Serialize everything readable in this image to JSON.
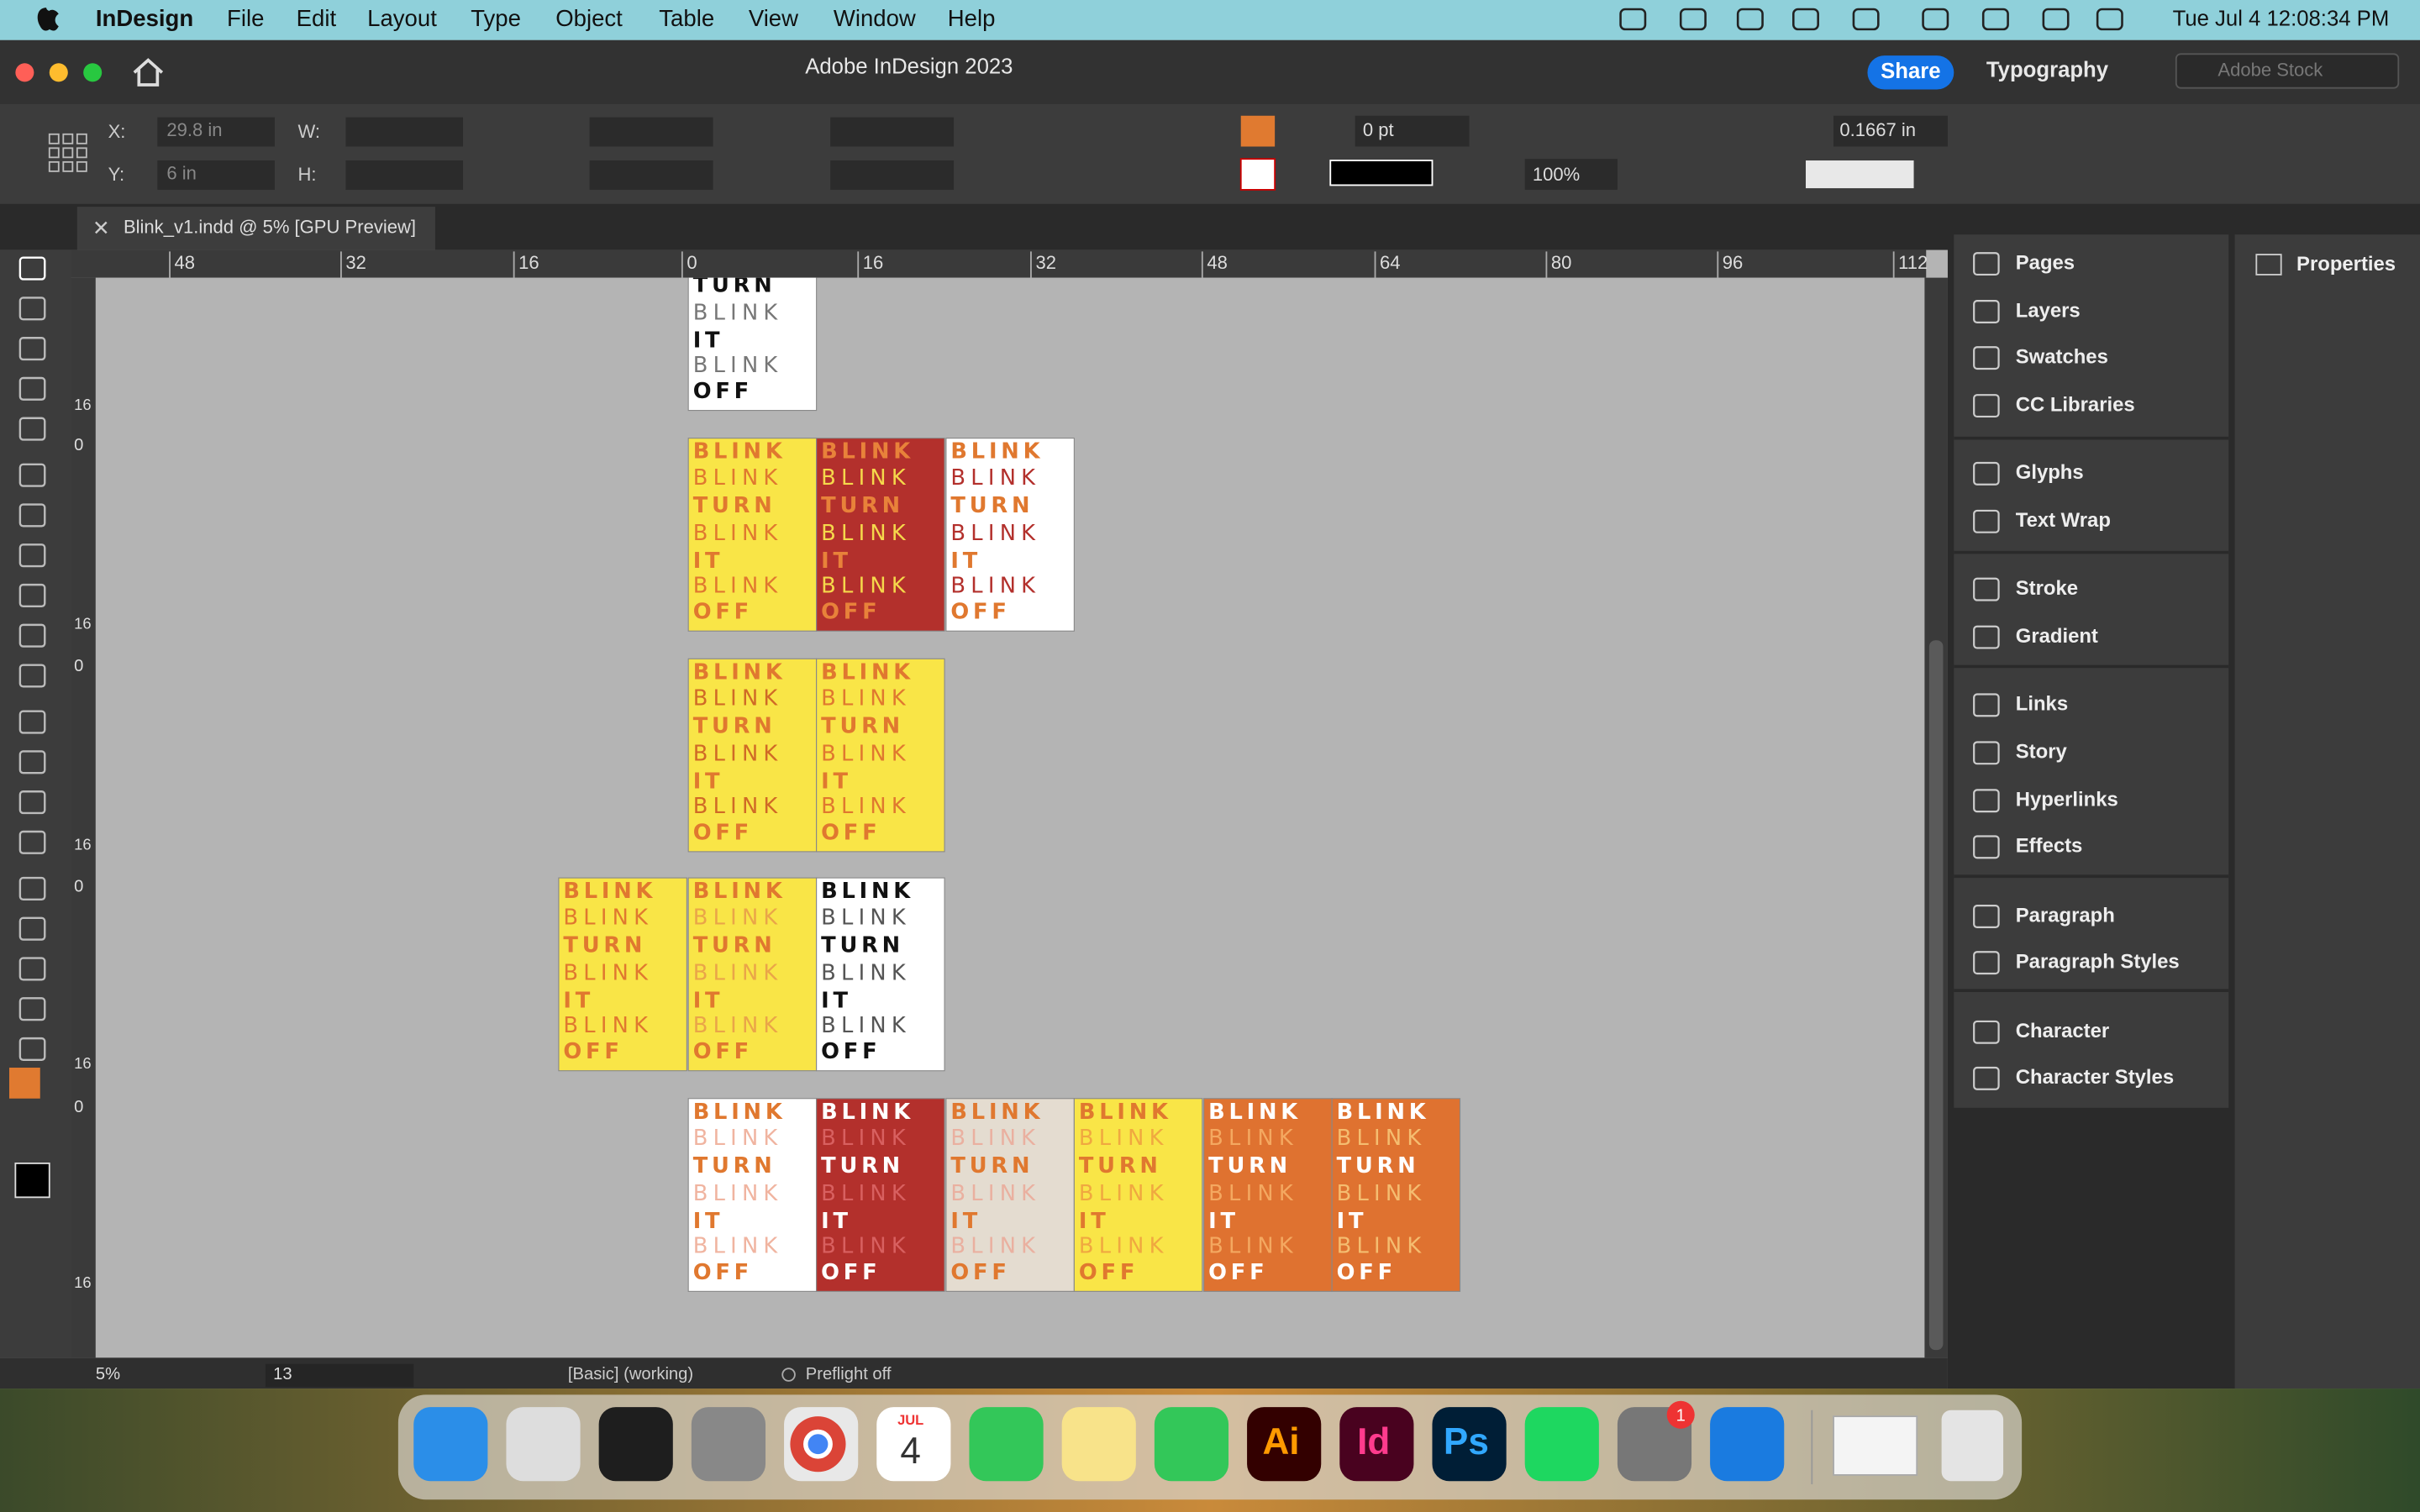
{
  "menubar": {
    "app": "InDesign",
    "menus": [
      "File",
      "Edit",
      "Layout",
      "Type",
      "Object",
      "Table",
      "View",
      "Window",
      "Help"
    ],
    "datetime": "Tue Jul 4  12:08:34 PM"
  },
  "titlebar": {
    "title": "Adobe InDesign 2023",
    "share": "Share",
    "workspace": "Typography",
    "search": "Adobe Stock"
  },
  "control": {
    "x_label": "X:",
    "x": "29.8 in",
    "y_label": "Y:",
    "y": "6 in",
    "w_label": "W:",
    "h_label": "H:",
    "stroke": "0 pt",
    "opacity": "100%",
    "spacing": "0.1667 in"
  },
  "tab": "Blink_v1.indd @ 5% [GPU Preview]",
  "ruler": [
    "48",
    "32",
    "16",
    "0",
    "16",
    "32",
    "48",
    "64",
    "80",
    "96",
    "112"
  ],
  "vruler": [
    "16",
    "0"
  ],
  "words": [
    "BLINK",
    "BLINK",
    "TURN",
    "BLINK",
    "IT",
    "BLINK",
    "OFF"
  ],
  "panels": [
    "Pages",
    "Layers",
    "Swatches",
    "CC Libraries",
    "Glyphs",
    "Text Wrap",
    "Stroke",
    "Gradient",
    "Links",
    "Story",
    "Hyperlinks",
    "Effects",
    "Paragraph",
    "Paragraph Styles",
    "Character",
    "Character Styles"
  ],
  "properties": "Properties",
  "statusbar": {
    "zoom": "5%",
    "page": "13",
    "style": "[Basic] (working)",
    "preflight": "Preflight off"
  },
  "dock": {
    "month": "JUL",
    "day": "4",
    "badge": "1",
    "ai": "Ai",
    "id": "Id",
    "ps": "Ps"
  }
}
